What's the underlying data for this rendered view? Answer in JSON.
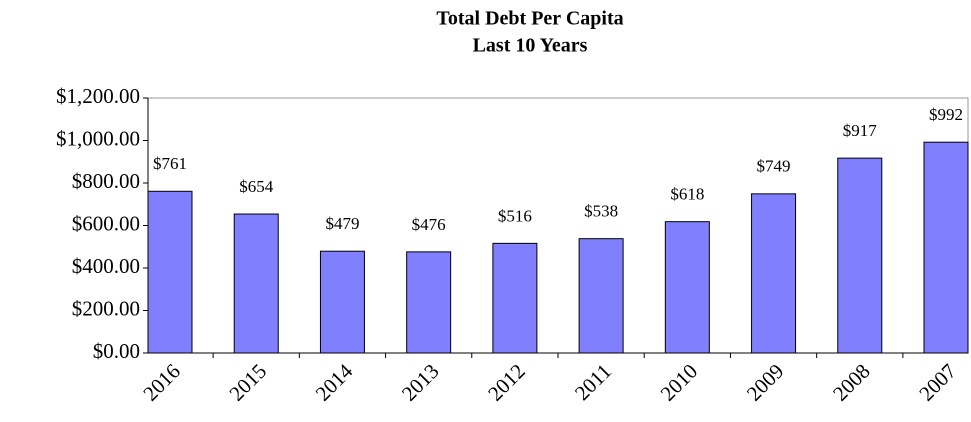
{
  "chart_data": {
    "type": "bar",
    "title": "Total Debt Per Capita",
    "subtitle": "Last 10 Years",
    "categories": [
      "2016",
      "2015",
      "2014",
      "2013",
      "2012",
      "2011",
      "2010",
      "2009",
      "2008",
      "2007"
    ],
    "values": [
      761,
      654,
      479,
      476,
      516,
      538,
      618,
      749,
      917,
      992
    ],
    "value_labels": [
      "$761",
      "$654",
      "$479",
      "$476",
      "$516",
      "$538",
      "$618",
      "$749",
      "$917",
      "$992"
    ],
    "color": "#8080ff",
    "ylim": [
      0,
      1200
    ],
    "yticks": [
      {
        "value": 0,
        "label": "$0.00"
      },
      {
        "value": 200,
        "label": "$200.00"
      },
      {
        "value": 400,
        "label": "$400.00"
      },
      {
        "value": 600,
        "label": "$600.00"
      },
      {
        "value": 800,
        "label": "$800.00"
      },
      {
        "value": 1000,
        "label": "$1,000.00"
      },
      {
        "value": 1200,
        "label": "$1,200.00"
      }
    ],
    "grid": false
  }
}
